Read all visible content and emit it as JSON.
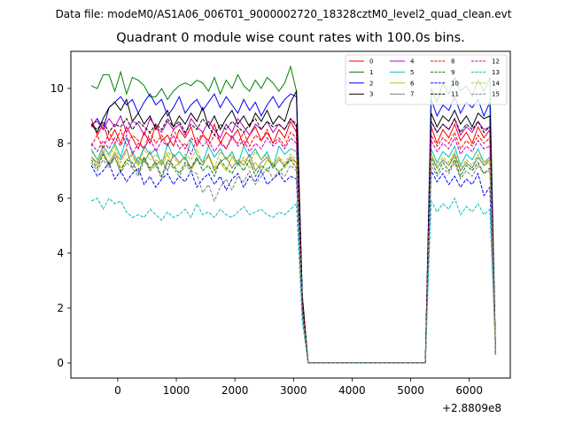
{
  "suptitle": "Data file: modeM0/AS1A06_006T01_9000002720_18328cztM0_level2_quad_clean.evt",
  "chart_data": {
    "type": "line",
    "title": "Quadrant 0 module wise count rates with 100.0s bins.",
    "xlabel": "",
    "ylabel": "",
    "x_offset_label": "+2.8809e8",
    "xlim": [
      -800,
      6700
    ],
    "ylim": [
      -0.55,
      11.35
    ],
    "xticks": [
      0,
      1000,
      2000,
      3000,
      4000,
      5000,
      6000
    ],
    "yticks": [
      0,
      2,
      4,
      6,
      8,
      10
    ],
    "legend_location": "upper right",
    "x": [
      -450,
      -350,
      -250,
      -150,
      -50,
      50,
      150,
      250,
      350,
      450,
      550,
      650,
      750,
      850,
      950,
      1050,
      1150,
      1250,
      1350,
      1450,
      1550,
      1650,
      1750,
      1850,
      1950,
      2050,
      2150,
      2250,
      2350,
      2450,
      2550,
      2650,
      2750,
      2850,
      2950,
      3050,
      3150,
      3250,
      5250,
      5350,
      5450,
      5550,
      5650,
      5750,
      5850,
      5950,
      6050,
      6150,
      6250,
      6350,
      6450
    ],
    "series": [
      {
        "name": "0",
        "color": "#ff0000",
        "style": "solid",
        "values": [
          8.9,
          8.3,
          8.7,
          8.1,
          8.5,
          8.0,
          8.6,
          8.2,
          7.8,
          8.4,
          8.0,
          8.7,
          8.1,
          8.3,
          7.9,
          8.5,
          8.2,
          8.6,
          7.9,
          8.3,
          8.1,
          8.7,
          8.0,
          8.4,
          8.2,
          8.5,
          7.9,
          8.3,
          8.6,
          8.1,
          8.4,
          8.0,
          8.5,
          8.2,
          8.8,
          8.4,
          2.0,
          0.0,
          0.0,
          8.6,
          8.0,
          8.5,
          8.2,
          8.7,
          8.1,
          8.4,
          8.0,
          8.6,
          8.2,
          8.5,
          0.3
        ]
      },
      {
        "name": "1",
        "color": "#008000",
        "style": "solid",
        "values": [
          10.1,
          10.0,
          10.5,
          10.5,
          9.9,
          10.6,
          9.8,
          10.4,
          10.3,
          10.1,
          9.7,
          9.7,
          10.0,
          9.6,
          9.9,
          10.1,
          10.2,
          10.1,
          10.3,
          10.2,
          9.9,
          10.4,
          9.8,
          10.3,
          10.0,
          10.5,
          10.1,
          9.9,
          10.3,
          10.0,
          10.4,
          10.2,
          9.9,
          10.2,
          10.8,
          9.9,
          2.5,
          0.0,
          0.0,
          10.0,
          9.5,
          10.2,
          9.8,
          10.4,
          9.9,
          10.1,
          9.7,
          10.3,
          9.9,
          10.4,
          0.3
        ]
      },
      {
        "name": "2",
        "color": "#0000ff",
        "style": "solid",
        "values": [
          8.6,
          8.9,
          8.5,
          9.3,
          9.5,
          9.7,
          9.4,
          9.6,
          9.1,
          9.5,
          9.8,
          9.4,
          9.6,
          9.0,
          9.3,
          9.7,
          9.1,
          9.4,
          9.6,
          9.2,
          9.5,
          9.8,
          9.3,
          9.7,
          9.4,
          9.1,
          9.6,
          9.2,
          9.5,
          9.0,
          9.4,
          9.7,
          9.3,
          9.6,
          9.8,
          9.7,
          2.4,
          0.0,
          0.0,
          9.6,
          9.0,
          9.4,
          9.2,
          9.7,
          9.1,
          9.5,
          9.3,
          9.6,
          9.0,
          9.5,
          0.3
        ]
      },
      {
        "name": "3",
        "color": "#000000",
        "style": "solid",
        "values": [
          8.7,
          8.4,
          8.9,
          9.3,
          9.5,
          9.2,
          9.6,
          8.8,
          9.1,
          8.7,
          9.0,
          8.5,
          8.9,
          9.2,
          8.6,
          9.0,
          8.7,
          9.1,
          8.8,
          9.3,
          8.6,
          9.0,
          8.5,
          8.9,
          9.2,
          8.7,
          9.0,
          8.6,
          9.1,
          8.8,
          9.2,
          8.7,
          9.0,
          8.8,
          9.5,
          9.9,
          2.4,
          0.0,
          0.0,
          9.1,
          8.6,
          9.0,
          8.8,
          9.2,
          8.7,
          9.0,
          8.6,
          9.1,
          8.9,
          9.0,
          0.3
        ]
      },
      {
        "name": "4",
        "color": "#bf00bf",
        "style": "solid",
        "values": [
          8.7,
          8.8,
          8.5,
          8.9,
          8.6,
          9.0,
          8.4,
          8.8,
          8.7,
          8.3,
          8.9,
          8.6,
          8.4,
          8.8,
          8.5,
          8.7,
          8.3,
          8.9,
          8.6,
          8.4,
          8.8,
          8.5,
          8.2,
          8.7,
          8.4,
          8.9,
          8.6,
          8.3,
          8.7,
          8.5,
          8.8,
          8.4,
          8.7,
          8.5,
          8.9,
          8.6,
          2.2,
          0.0,
          0.0,
          8.8,
          8.4,
          8.7,
          8.5,
          8.9,
          8.3,
          8.6,
          8.4,
          8.8,
          8.5,
          8.6,
          0.3
        ]
      },
      {
        "name": "5",
        "color": "#00bfbf",
        "style": "solid",
        "values": [
          7.8,
          7.4,
          7.9,
          7.6,
          8.0,
          7.5,
          8.2,
          7.7,
          7.3,
          7.9,
          7.6,
          7.8,
          7.2,
          8.0,
          7.5,
          7.7,
          7.4,
          8.1,
          7.6,
          7.3,
          7.9,
          7.5,
          7.8,
          7.4,
          7.7,
          7.2,
          7.9,
          7.5,
          7.8,
          7.4,
          7.7,
          7.1,
          7.9,
          7.6,
          7.8,
          7.7,
          2.0,
          0.0,
          0.0,
          7.8,
          7.3,
          7.7,
          7.5,
          7.9,
          7.2,
          7.6,
          7.4,
          7.8,
          7.3,
          7.5,
          0.3
        ]
      },
      {
        "name": "6",
        "color": "#bfbf00",
        "style": "solid",
        "values": [
          7.5,
          7.2,
          7.6,
          7.3,
          7.7,
          7.1,
          7.4,
          7.6,
          7.2,
          7.5,
          7.0,
          7.4,
          7.2,
          7.6,
          7.1,
          7.3,
          7.5,
          7.0,
          7.4,
          7.2,
          7.6,
          7.1,
          7.3,
          7.0,
          7.5,
          7.2,
          7.4,
          7.1,
          7.3,
          7.0,
          7.4,
          7.2,
          7.5,
          7.1,
          7.4,
          7.3,
          1.9,
          0.0,
          0.0,
          7.6,
          7.1,
          7.4,
          7.2,
          7.5,
          7.0,
          7.3,
          7.1,
          7.5,
          7.2,
          7.3,
          0.3
        ]
      },
      {
        "name": "7",
        "color": "#808080",
        "style": "solid",
        "values": [
          7.5,
          7.3,
          7.7,
          7.2,
          7.6,
          7.4,
          7.8,
          7.1,
          7.5,
          7.3,
          7.7,
          7.2,
          7.4,
          7.0,
          7.6,
          7.3,
          7.5,
          7.1,
          7.4,
          7.2,
          7.6,
          7.0,
          7.3,
          7.5,
          7.1,
          7.4,
          7.2,
          7.6,
          7.0,
          7.3,
          7.5,
          7.1,
          7.4,
          7.2,
          7.5,
          7.3,
          1.9,
          0.0,
          0.0,
          7.5,
          7.1,
          7.4,
          7.2,
          7.6,
          7.0,
          7.3,
          7.1,
          7.5,
          7.2,
          7.4,
          0.3
        ]
      },
      {
        "name": "8",
        "color": "#ff0000",
        "style": "dashed",
        "values": [
          7.9,
          8.3,
          7.8,
          8.4,
          8.0,
          8.5,
          7.9,
          8.3,
          8.1,
          7.8,
          8.4,
          8.0,
          8.3,
          7.9,
          8.5,
          8.1,
          7.8,
          8.2,
          8.0,
          8.4,
          7.9,
          8.3,
          8.1,
          7.8,
          8.2,
          8.0,
          8.4,
          7.9,
          8.3,
          8.1,
          8.5,
          8.0,
          8.2,
          7.9,
          8.4,
          8.2,
          2.1,
          0.0,
          0.0,
          8.3,
          7.9,
          8.2,
          8.0,
          8.4,
          7.8,
          8.1,
          7.9,
          8.3,
          8.0,
          8.2,
          0.3
        ]
      },
      {
        "name": "9",
        "color": "#008000",
        "style": "dashed",
        "values": [
          7.4,
          7.1,
          7.6,
          7.2,
          7.5,
          7.0,
          7.4,
          7.3,
          6.9,
          7.5,
          7.1,
          7.3,
          6.8,
          7.4,
          7.2,
          6.9,
          7.3,
          7.1,
          7.5,
          7.0,
          7.2,
          6.8,
          7.4,
          7.1,
          6.9,
          7.3,
          7.0,
          7.4,
          6.8,
          7.2,
          7.0,
          7.3,
          6.9,
          7.2,
          7.4,
          7.1,
          1.9,
          0.0,
          0.0,
          7.4,
          6.9,
          7.3,
          7.0,
          7.4,
          6.8,
          7.2,
          7.0,
          7.3,
          6.9,
          7.1,
          0.3
        ]
      },
      {
        "name": "10",
        "color": "#0000ff",
        "style": "dashed",
        "values": [
          7.2,
          6.8,
          7.0,
          7.3,
          6.7,
          7.0,
          6.6,
          6.9,
          7.1,
          6.5,
          6.8,
          6.4,
          6.7,
          6.9,
          6.5,
          6.8,
          6.6,
          7.0,
          6.4,
          6.7,
          6.9,
          6.5,
          6.8,
          6.3,
          6.7,
          6.9,
          6.4,
          6.8,
          6.6,
          7.0,
          6.5,
          6.7,
          6.9,
          6.6,
          6.8,
          6.7,
          1.8,
          0.0,
          0.0,
          7.0,
          6.6,
          6.9,
          6.5,
          6.8,
          6.4,
          6.7,
          6.5,
          6.9,
          6.1,
          6.4,
          0.3
        ]
      },
      {
        "name": "11",
        "color": "#000000",
        "style": "dashed",
        "values": [
          8.7,
          8.5,
          8.8,
          8.4,
          8.7,
          8.6,
          8.9,
          8.5,
          8.8,
          8.6,
          8.4,
          8.7,
          8.5,
          8.9,
          8.6,
          8.8,
          8.4,
          8.7,
          8.5,
          8.9,
          8.6,
          8.3,
          8.7,
          8.5,
          8.8,
          8.6,
          8.4,
          8.7,
          8.9,
          8.5,
          8.8,
          8.6,
          8.7,
          8.5,
          8.9,
          8.7,
          2.2,
          0.0,
          0.0,
          8.8,
          8.4,
          8.7,
          8.5,
          8.9,
          8.4,
          8.7,
          8.5,
          8.8,
          8.4,
          8.6,
          0.3
        ]
      },
      {
        "name": "12",
        "color": "#bf00bf",
        "style": "dashed",
        "values": [
          8.0,
          7.7,
          8.1,
          7.8,
          8.2,
          7.9,
          8.3,
          7.6,
          8.0,
          7.8,
          8.2,
          7.7,
          8.1,
          7.9,
          8.3,
          7.8,
          8.0,
          7.6,
          8.2,
          7.9,
          8.1,
          7.7,
          8.0,
          7.8,
          8.3,
          7.9,
          8.1,
          7.7,
          8.0,
          7.8,
          8.2,
          7.9,
          8.1,
          7.8,
          8.2,
          8.0,
          2.0,
          0.0,
          0.0,
          8.1,
          7.7,
          8.0,
          7.8,
          8.2,
          7.6,
          7.9,
          7.7,
          8.1,
          7.8,
          7.9,
          0.3
        ]
      },
      {
        "name": "13",
        "color": "#00bfbf",
        "style": "dashed",
        "values": [
          5.9,
          6.0,
          5.6,
          6.0,
          5.8,
          5.9,
          5.5,
          5.3,
          5.4,
          5.3,
          5.6,
          5.4,
          5.2,
          5.5,
          5.3,
          5.4,
          5.6,
          5.3,
          5.8,
          5.4,
          5.5,
          5.3,
          5.6,
          5.4,
          5.3,
          5.5,
          5.7,
          5.4,
          5.5,
          5.6,
          5.4,
          5.3,
          5.5,
          5.4,
          5.6,
          5.8,
          1.5,
          0.0,
          0.0,
          5.9,
          5.5,
          5.8,
          5.6,
          6.0,
          5.4,
          5.7,
          5.5,
          5.8,
          5.4,
          5.6,
          0.3
        ]
      },
      {
        "name": "14",
        "color": "#bfbf00",
        "style": "dashed",
        "values": [
          7.7,
          7.4,
          7.8,
          7.5,
          7.9,
          7.3,
          7.7,
          7.5,
          7.2,
          7.8,
          7.4,
          7.6,
          7.3,
          7.7,
          7.5,
          7.2,
          7.6,
          7.4,
          7.8,
          7.3,
          7.5,
          7.1,
          7.7,
          7.4,
          7.6,
          7.2,
          7.5,
          7.3,
          7.7,
          7.4,
          7.6,
          7.2,
          7.5,
          7.3,
          7.6,
          7.4,
          1.9,
          0.0,
          0.0,
          7.6,
          7.2,
          7.5,
          7.3,
          7.7,
          7.1,
          7.4,
          7.2,
          7.6,
          7.3,
          7.4,
          0.3
        ]
      },
      {
        "name": "15",
        "color": "#808080",
        "style": "dashed",
        "values": [
          7.3,
          7.0,
          7.4,
          7.1,
          7.5,
          6.9,
          7.3,
          7.1,
          6.8,
          7.4,
          7.0,
          7.2,
          6.7,
          7.3,
          7.1,
          6.8,
          7.2,
          7.0,
          6.9,
          6.2,
          6.5,
          5.9,
          6.4,
          6.7,
          6.3,
          6.8,
          6.6,
          7.0,
          6.5,
          6.8,
          7.1,
          6.7,
          7.0,
          6.8,
          7.2,
          7.0,
          1.8,
          0.0,
          0.0,
          7.2,
          6.8,
          7.1,
          6.9,
          7.3,
          6.7,
          7.0,
          6.8,
          7.2,
          6.9,
          7.0,
          0.3
        ]
      }
    ]
  }
}
